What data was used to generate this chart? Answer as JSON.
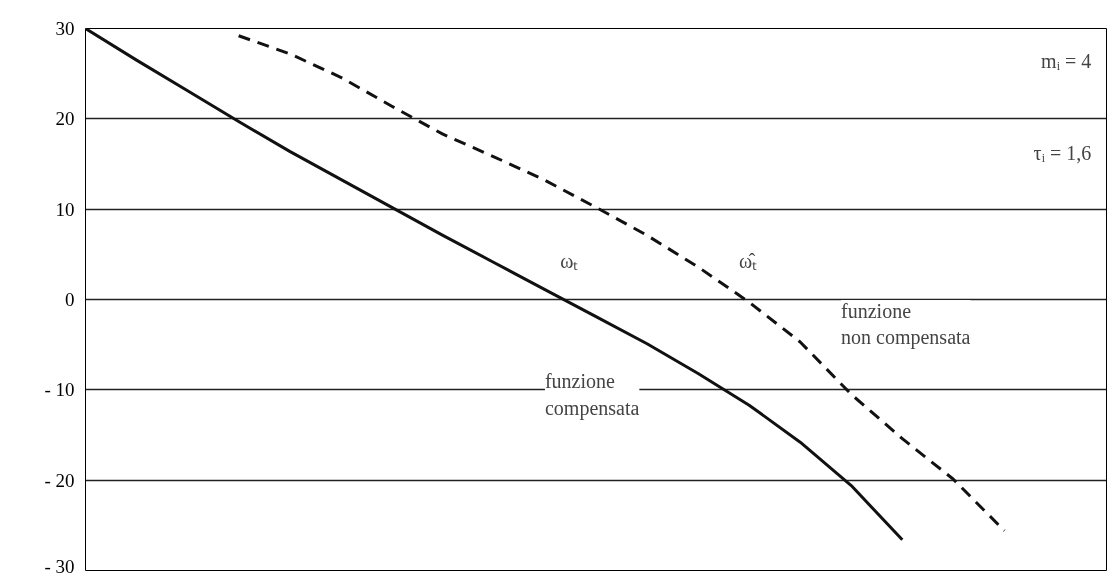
{
  "chart_data": {
    "type": "line",
    "categories": [
      null,
      null,
      null,
      null,
      null,
      null,
      null,
      null,
      null,
      null,
      null,
      null,
      null,
      null,
      null,
      null,
      null,
      null,
      null,
      null,
      null
    ],
    "ylim": [
      -30,
      30
    ],
    "yticks": [
      {
        "value": -30,
        "label": "- 30"
      },
      {
        "value": -20,
        "label": "- 20"
      },
      {
        "value": -10,
        "label": "- 10"
      },
      0,
      10,
      20,
      30
    ],
    "grid": "y",
    "series": [
      {
        "color": "#111111",
        "line_style": "solid",
        "values": [
          30,
          26.5,
          23.1,
          19.7,
          16.4,
          13.3,
          10.2,
          7.1,
          4.1,
          1.1,
          -1.9,
          -4.9,
          -8.2,
          -11.7,
          -15.8,
          -20.6,
          -26.6,
          null,
          null,
          null,
          null
        ]
      },
      {
        "color": "#111111",
        "line_style": "dashed",
        "values": [
          null,
          null,
          null,
          29.2,
          27.2,
          24.6,
          21.4,
          18.3,
          15.8,
          13.2,
          10.2,
          7.1,
          3.6,
          -0.3,
          -4.7,
          -10.5,
          -15.4,
          -19.9,
          -25.6,
          null,
          null
        ]
      }
    ],
    "annotations": [
      "ωₜ",
      "ω̂ₜ",
      "funzione non compensata",
      "funzione compensata",
      "mᵢ = 4",
      "τᵢ = 1,6"
    ]
  }
}
